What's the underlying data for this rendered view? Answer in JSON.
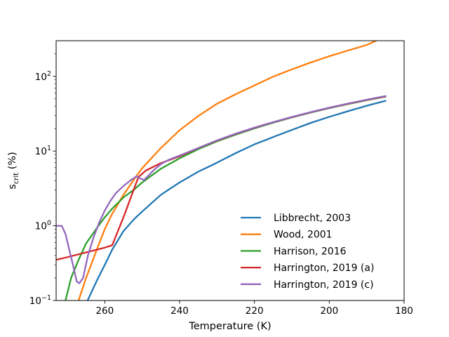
{
  "chart_data": {
    "type": "line",
    "title": "",
    "xlabel": "Temperature (K)",
    "ylabel_main": "s",
    "ylabel_sub": "crit",
    "ylabel_tail": " (%)",
    "xlim": [
      273,
      180
    ],
    "ylim": [
      0.1,
      300
    ],
    "yscale": "log",
    "grid": false,
    "legend_position": "lower right",
    "x_ticks": [
      {
        "value": 260,
        "label": "260"
      },
      {
        "value": 240,
        "label": "240"
      },
      {
        "value": 220,
        "label": "220"
      },
      {
        "value": 200,
        "label": "200"
      },
      {
        "value": 180,
        "label": "180"
      }
    ],
    "y_ticks": [
      {
        "value": 0.1,
        "base": "10",
        "exp": "−1"
      },
      {
        "value": 1,
        "base": "10",
        "exp": "0"
      },
      {
        "value": 10,
        "base": "10",
        "exp": "1"
      },
      {
        "value": 100,
        "base": "10",
        "exp": "2"
      }
    ],
    "series": [
      {
        "name": "Libbrecht, 2003",
        "color": "#1f77b4",
        "x": [
          264.6,
          262,
          260,
          258,
          255,
          252,
          250,
          245,
          240,
          235,
          230,
          225,
          220,
          215,
          210,
          205,
          200,
          195,
          190,
          185
        ],
        "y": [
          0.1,
          0.19,
          0.3,
          0.48,
          0.85,
          1.25,
          1.55,
          2.6,
          3.8,
          5.3,
          7.0,
          9.4,
          12.3,
          15.4,
          19.2,
          23.8,
          28.7,
          34.2,
          40.4,
          47
        ]
      },
      {
        "name": "Wood, 2001",
        "color": "#ff7f0e",
        "x": [
          267,
          265,
          262,
          260,
          258,
          255,
          252,
          250,
          245,
          240,
          235,
          230,
          225,
          220,
          215,
          210,
          205,
          200,
          195,
          190,
          187.5
        ],
        "y": [
          0.1,
          0.2,
          0.5,
          0.9,
          1.45,
          2.6,
          4.3,
          5.9,
          11,
          19,
          29.5,
          43,
          57.7,
          75.6,
          99.1,
          124,
          153,
          186,
          222,
          263,
          300
        ]
      },
      {
        "name": "Harrison, 2016",
        "color": "#2ca02c",
        "x": [
          270.5,
          269,
          267,
          265,
          262,
          260,
          258,
          255,
          252,
          250,
          245,
          240,
          235,
          230,
          225,
          220,
          215,
          210,
          205,
          200,
          195,
          190,
          185
        ],
        "y": [
          0.1,
          0.2,
          0.35,
          0.58,
          0.95,
          1.3,
          1.7,
          2.4,
          3.1,
          3.8,
          5.8,
          8.0,
          10.6,
          13.5,
          16.6,
          20.1,
          24.0,
          28.2,
          32.7,
          37.6,
          42.6,
          47.9,
          53.5
        ]
      },
      {
        "name": "Harrington, 2019 (a)",
        "color": "#d62728",
        "x": [
          273,
          270,
          265,
          260,
          258,
          255,
          251,
          249,
          245,
          240,
          235,
          230,
          225,
          220,
          215,
          210,
          205,
          200,
          195,
          190,
          185
        ],
        "y": [
          0.35,
          0.38,
          0.44,
          0.51,
          0.55,
          1.3,
          4.5,
          5.5,
          6.9,
          8.5,
          11.0,
          13.8,
          17.0,
          20.5,
          24.3,
          28.5,
          33.0,
          38.0,
          43.0,
          48.5,
          54
        ]
      },
      {
        "name": "Harrington, 2019 (c)",
        "color": "#9467bd",
        "x": [
          273,
          271.5,
          270.5,
          269.5,
          268.5,
          267.5,
          266.8,
          265.8,
          264.5,
          263,
          261.5,
          260,
          258.5,
          257,
          255,
          253,
          251.5,
          250.5,
          249.5,
          248.5,
          247,
          245,
          243,
          240,
          235,
          230,
          225,
          220,
          215,
          210,
          205,
          200,
          195,
          190,
          185
        ],
        "y": [
          1.0,
          1.0,
          0.78,
          0.48,
          0.3,
          0.18,
          0.17,
          0.2,
          0.4,
          0.7,
          1.1,
          1.6,
          2.15,
          2.75,
          3.4,
          4.1,
          4.6,
          4.3,
          4.1,
          4.6,
          5.5,
          6.7,
          7.6,
          8.7,
          11.0,
          13.9,
          17.1,
          20.6,
          24.4,
          28.6,
          33.2,
          38.1,
          43.2,
          48.7,
          54.5
        ]
      }
    ]
  }
}
